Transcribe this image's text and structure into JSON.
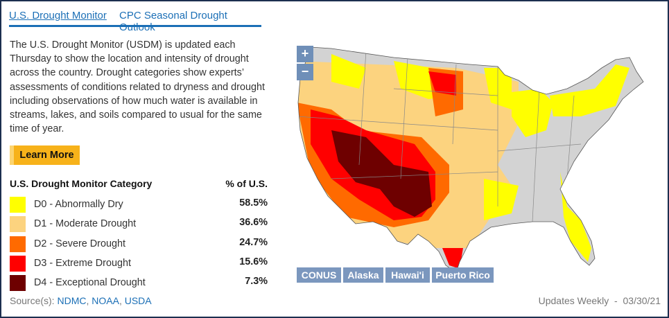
{
  "tabs": [
    {
      "label": "U.S. Drought Monitor",
      "active": true
    },
    {
      "label": "CPC Seasonal Drought Outlook",
      "active": false
    }
  ],
  "description": "The U.S. Drought Monitor (USDM) is updated each Thursday to show the location and intensity of drought across the country. Drought categories show experts’ assessments of conditions related to dryness and drought including observations of how much water is available in streams, lakes, and soils compared to usual for the same time of year.",
  "learn_more": "Learn More",
  "legend": {
    "header": "U.S. Drought Monitor Category",
    "pct_header": "% of U.S.",
    "items": [
      {
        "label": "D0 - Abnormally Dry",
        "value": "58.5%",
        "color": "#ffff00"
      },
      {
        "label": "D1 - Moderate Drought",
        "value": "36.6%",
        "color": "#fcd37f"
      },
      {
        "label": "D2 - Severe Drought",
        "value": "24.7%",
        "color": "#ff6a00"
      },
      {
        "label": "D3 - Extreme Drought",
        "value": "15.6%",
        "color": "#ff0000"
      },
      {
        "label": "D4 - Exceptional Drought",
        "value": "7.3%",
        "color": "#6e0000"
      }
    ]
  },
  "sources": {
    "prefix": "Source(s):",
    "links": [
      "NDMC",
      "NOAA",
      "USDA"
    ]
  },
  "updates": "Updates Weekly  -  03/30/21",
  "map": {
    "zoom_in": "+",
    "zoom_out": "−",
    "regions": [
      "CONUS",
      "Alaska",
      "Hawai'i",
      "Puerto Rico"
    ],
    "no_drought_color": "#d3d3d3"
  }
}
